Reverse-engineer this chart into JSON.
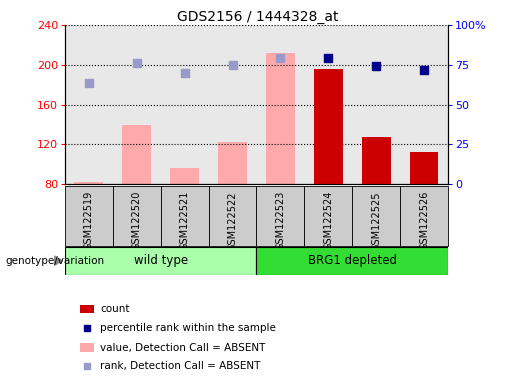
{
  "title": "GDS2156 / 1444328_at",
  "samples": [
    "GSM122519",
    "GSM122520",
    "GSM122521",
    "GSM122522",
    "GSM122523",
    "GSM122524",
    "GSM122525",
    "GSM122526"
  ],
  "group_labels": [
    "wild type",
    "BRG1 depleted"
  ],
  "ylim_left": [
    80,
    240
  ],
  "ylim_right": [
    0,
    100
  ],
  "yticks_left": [
    80,
    120,
    160,
    200,
    240
  ],
  "yticks_right": [
    0,
    25,
    50,
    75,
    100
  ],
  "yticklabels_right": [
    "0",
    "25",
    "50",
    "75",
    "100%"
  ],
  "count_values": [
    null,
    null,
    null,
    null,
    null,
    196,
    128,
    112
  ],
  "percentile_rank_values": [
    null,
    null,
    null,
    null,
    null,
    79,
    74,
    72
  ],
  "absent_value_values": [
    82,
    140,
    96,
    122,
    212,
    null,
    null,
    null
  ],
  "absent_rank_values": [
    182,
    202,
    192,
    200,
    207,
    null,
    null,
    null
  ],
  "bar_color_count": "#cc0000",
  "bar_color_absent_value": "#ffaaaa",
  "dot_color_percentile": "#00008b",
  "dot_color_absent_rank": "#9999cc",
  "sample_box_color": "#cccccc",
  "group_box_color_wild": "#aaffaa",
  "group_box_color_brg1": "#33dd33",
  "legend_items": [
    {
      "label": "count",
      "color": "#cc0000",
      "type": "bar"
    },
    {
      "label": "percentile rank within the sample",
      "color": "#00008b",
      "type": "dot"
    },
    {
      "label": "value, Detection Call = ABSENT",
      "color": "#ffaaaa",
      "type": "bar"
    },
    {
      "label": "rank, Detection Call = ABSENT",
      "color": "#9999cc",
      "type": "dot"
    }
  ]
}
